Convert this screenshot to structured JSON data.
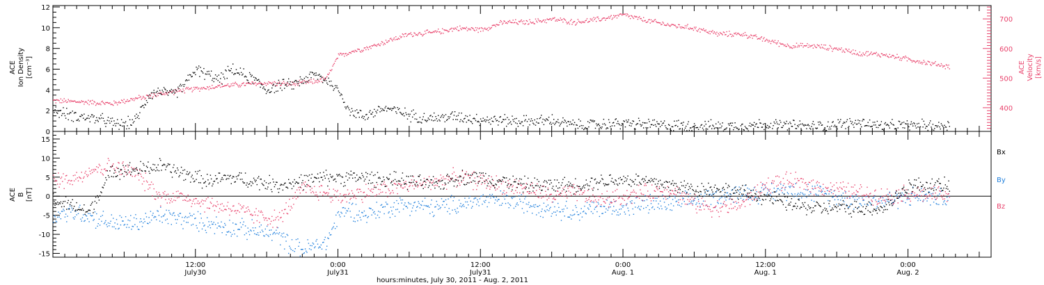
{
  "colors": {
    "density": "#000000",
    "velocity": "#e8406a",
    "bx": "#000000",
    "by": "#1f7fdc",
    "bz": "#e8406a",
    "axes": "#000000"
  },
  "panel_top": {
    "left_axis_title_lines": [
      "ACE",
      "Ion Density",
      "[cm⁻³]"
    ],
    "right_axis_title_lines": [
      "ACE",
      "Velocity",
      "[km/s]"
    ]
  },
  "panel_bottom": {
    "axis_title_lines": [
      "ACE",
      "B",
      "[nT]"
    ],
    "legend": {
      "bx": "Bx",
      "by": "By",
      "bz": "Bz"
    }
  },
  "x_axis": {
    "title": "hours:minutes, July 30, 2011 - Aug. 2, 2011",
    "ticks": [
      {
        "hours": 12,
        "time": "12:00",
        "date": "July30"
      },
      {
        "hours": 24,
        "time": "0:00",
        "date": "July31"
      },
      {
        "hours": 36,
        "time": "12:00",
        "date": "July31"
      },
      {
        "hours": 48,
        "time": "0:00",
        "date": "Aug. 1"
      },
      {
        "hours": 60,
        "time": "12:00",
        "date": "Aug. 1"
      },
      {
        "hours": 72,
        "time": "0:00",
        "date": "Aug. 2"
      }
    ]
  },
  "chart_data": [
    {
      "type": "scatter",
      "title": "",
      "xlabel": "hours:minutes, July 30, 2011 - Aug. 2, 2011",
      "x_units": "hours since July 30, 2011 00:00",
      "xlim": [
        0,
        79
      ],
      "ylabel": "ACE Ion Density [cm⁻³]",
      "ylim": [
        0,
        12
      ],
      "y_ticks": [
        0,
        2,
        4,
        6,
        8,
        10,
        12
      ],
      "y2label": "ACE Velocity [km/s]",
      "y2lim": [
        320,
        745
      ],
      "y2_ticks": [
        400,
        500,
        600,
        700
      ],
      "series": [
        {
          "name": "",
          "axis": "left",
          "color": "#000000",
          "keypoints_x": [
            0,
            2,
            4,
            5,
            6,
            7,
            8,
            9,
            10,
            11,
            12,
            13,
            14,
            15,
            16,
            17,
            18,
            19,
            20,
            21,
            22,
            23,
            24,
            25,
            26,
            28,
            30,
            32,
            34,
            36,
            38,
            40,
            42,
            44,
            46,
            48,
            50,
            52,
            54,
            56,
            58,
            60,
            62,
            64,
            66,
            68,
            70,
            72,
            74,
            75.5
          ],
          "keypoints_y": [
            2,
            1.5,
            1.2,
            0.8,
            0.7,
            1.2,
            3.5,
            4,
            3.5,
            4.5,
            6,
            5.5,
            5,
            6,
            5.5,
            5,
            4,
            4.5,
            4.5,
            5,
            5.5,
            5,
            4,
            2,
            1.5,
            2.3,
            1.6,
            1.3,
            1.5,
            1.2,
            1.1,
            1,
            1.1,
            0.6,
            0.7,
            0.8,
            0.7,
            0.6,
            0.6,
            0.5,
            0.6,
            0.7,
            0.6,
            0.5,
            0.7,
            0.9,
            0.5,
            0.6,
            0.6,
            0.6
          ],
          "spread": 0.5
        },
        {
          "name": "",
          "axis": "right",
          "color": "#e8406a",
          "keypoints_x": [
            0,
            3,
            5,
            6,
            8,
            10,
            12,
            14,
            16,
            18,
            20,
            22,
            23,
            24,
            25,
            26,
            27,
            28,
            30,
            32,
            34,
            36,
            38,
            40,
            42,
            44,
            46,
            48,
            50,
            52,
            54,
            56,
            58,
            60,
            62,
            64,
            66,
            68,
            70,
            72,
            74,
            75.5
          ],
          "keypoints_y": [
            425,
            420,
            415,
            425,
            440,
            455,
            465,
            475,
            480,
            485,
            480,
            490,
            500,
            575,
            590,
            600,
            610,
            625,
            650,
            655,
            670,
            665,
            690,
            690,
            700,
            690,
            700,
            715,
            695,
            680,
            670,
            650,
            650,
            630,
            610,
            610,
            600,
            585,
            580,
            565,
            550,
            540
          ],
          "spread": 8
        }
      ]
    },
    {
      "type": "scatter",
      "title": "",
      "xlabel": "hours:minutes, July 30, 2011 - Aug. 2, 2011",
      "x_units": "hours since July 30, 2011 00:00",
      "xlim": [
        0,
        79
      ],
      "ylabel": "ACE B [nT]",
      "ylim": [
        -16,
        17
      ],
      "y_ticks": [
        -15,
        -10,
        -5,
        0,
        5,
        10,
        15
      ],
      "zero_line": true,
      "series": [
        {
          "name": "Bx",
          "color": "#000000",
          "keypoints_x": [
            0,
            2,
            3,
            5,
            7,
            9,
            11,
            13,
            15,
            17,
            19,
            21,
            23,
            24,
            26,
            28,
            30,
            32,
            34,
            36,
            38,
            40,
            42,
            44,
            46,
            48,
            50,
            52,
            54,
            56,
            58,
            60,
            62,
            64,
            66,
            68,
            70,
            72,
            74,
            75.5
          ],
          "keypoints_y": [
            -1,
            -3,
            -4,
            7,
            7,
            8,
            6,
            4,
            5,
            4,
            3,
            4,
            5,
            5,
            5,
            4.5,
            4,
            3,
            5,
            5,
            4,
            3,
            3,
            3,
            4,
            4.5,
            4,
            3,
            2,
            2,
            1,
            0,
            -2,
            -3,
            -3,
            -3,
            -3,
            3,
            3,
            2.5
          ],
          "spread": 1.8
        },
        {
          "name": "By",
          "color": "#1f7fdc",
          "keypoints_x": [
            0,
            2,
            3,
            5,
            7,
            9,
            11,
            13,
            15,
            17,
            19,
            20,
            21,
            22,
            23,
            24,
            25,
            26,
            28,
            30,
            32,
            34,
            36,
            38,
            40,
            42,
            44,
            46,
            48,
            50,
            52,
            54,
            56,
            58,
            60,
            62,
            64,
            66,
            68,
            70,
            72,
            74,
            75.5
          ],
          "keypoints_y": [
            -5,
            -4,
            -5,
            -7,
            -7,
            -5,
            -6,
            -7,
            -8,
            -9,
            -10,
            -13,
            -14,
            -13,
            -12,
            -5,
            -3,
            -5,
            -3,
            -2,
            -3,
            -2,
            -1,
            -1,
            -2,
            -3,
            -4,
            -3,
            -3,
            -2,
            -2,
            -1,
            0,
            1,
            1,
            2,
            1,
            0,
            -1,
            -1,
            0,
            0,
            -0.5
          ],
          "spread": 2.2
        },
        {
          "name": "Bz",
          "color": "#e8406a",
          "keypoints_x": [
            0,
            2,
            3,
            5,
            7,
            9,
            11,
            13,
            15,
            17,
            19,
            21,
            23,
            24,
            26,
            28,
            30,
            32,
            34,
            36,
            38,
            40,
            42,
            44,
            46,
            48,
            50,
            52,
            54,
            56,
            58,
            60,
            62,
            64,
            66,
            68,
            70,
            72,
            74,
            75.5
          ],
          "keypoints_y": [
            4,
            5,
            7,
            8,
            6,
            0,
            0,
            -2,
            -3,
            -5,
            -6,
            2,
            1,
            0,
            1,
            2,
            3,
            4,
            5,
            4,
            3,
            2,
            0,
            1,
            -1,
            0,
            1,
            2,
            -2,
            -3,
            -2,
            3,
            4,
            3,
            2,
            1,
            0,
            1,
            0.5,
            0
          ],
          "spread": 2
        }
      ]
    }
  ]
}
